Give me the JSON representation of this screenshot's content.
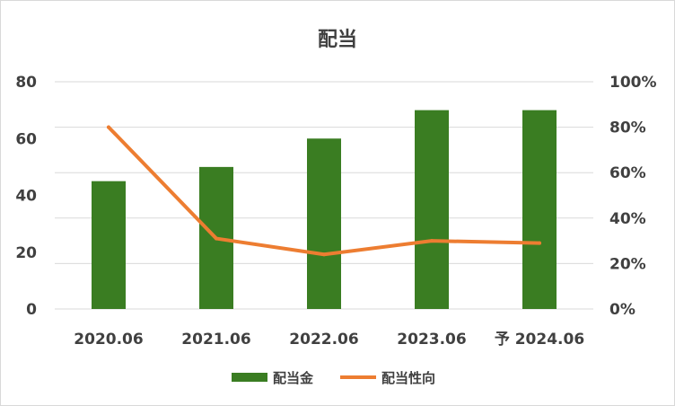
{
  "chart_data": {
    "type": "bar",
    "title": "配当",
    "categories": [
      "2020.06",
      "2021.06",
      "2022.06",
      "2023.06",
      "予 2024.06"
    ],
    "series": [
      {
        "name": "配当金",
        "type": "bar",
        "axis": "left",
        "color": "#3a7d22",
        "values": [
          45,
          50,
          60,
          70,
          70
        ]
      },
      {
        "name": "配当性向",
        "type": "line",
        "axis": "right",
        "color": "#ed7d31",
        "values": [
          80,
          31,
          24,
          30,
          29
        ]
      }
    ],
    "y_left": {
      "min": 0,
      "max": 80,
      "ticks": [
        "0",
        "20",
        "40",
        "60",
        "80"
      ]
    },
    "y_right": {
      "min": 0,
      "max": 100,
      "ticks": [
        "0%",
        "20%",
        "40%",
        "60%",
        "80%",
        "100%"
      ]
    },
    "grid": true,
    "legend_position": "bottom"
  }
}
